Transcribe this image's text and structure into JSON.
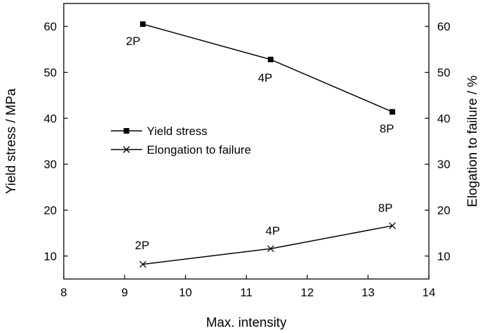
{
  "chart_data": {
    "type": "line",
    "xlabel": "Max. intensity",
    "ylabel_left": "Yield stress / MPa",
    "ylabel_right": "Elogation to failure / %",
    "xlim": [
      8,
      14
    ],
    "ylim_left": [
      5,
      65
    ],
    "ylim_right": [
      5,
      65
    ],
    "xticks": [
      8,
      9,
      10,
      11,
      12,
      13,
      14
    ],
    "yticks_left": [
      10,
      20,
      30,
      40,
      50,
      60
    ],
    "yticks_right": [
      10,
      20,
      30,
      40,
      50,
      60
    ],
    "grid": false,
    "legend_position": "center-left",
    "series": [
      {
        "name": "Yield stress",
        "axis": "left",
        "marker": "square",
        "x": [
          9.3,
          11.4,
          13.4
        ],
        "y": [
          60.5,
          52.8,
          41.4
        ],
        "point_labels": [
          "2P",
          "4P",
          "8P"
        ]
      },
      {
        "name": "Elongation to failure",
        "axis": "right",
        "marker": "x",
        "x": [
          9.3,
          11.4,
          13.4
        ],
        "y": [
          8.2,
          11.6,
          16.6
        ],
        "point_labels": [
          "2P",
          "4P",
          "8P"
        ]
      }
    ]
  }
}
